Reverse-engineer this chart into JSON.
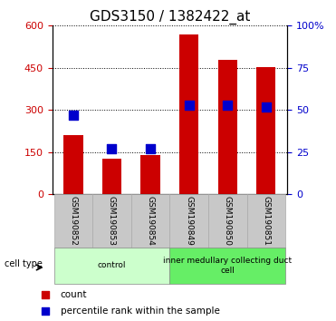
{
  "title": "GDS3150 / 1382422_at",
  "samples": [
    "GSM190852",
    "GSM190853",
    "GSM190854",
    "GSM190849",
    "GSM190850",
    "GSM190851"
  ],
  "counts": [
    210,
    128,
    140,
    570,
    478,
    452
  ],
  "percentiles": [
    47,
    27,
    27,
    53,
    53,
    52
  ],
  "left_ylim": [
    0,
    600
  ],
  "right_ylim": [
    0,
    100
  ],
  "left_yticks": [
    0,
    150,
    300,
    450,
    600
  ],
  "right_yticks": [
    0,
    25,
    50,
    75,
    100
  ],
  "bar_color": "#cc0000",
  "dot_color": "#0000cc",
  "groups": [
    {
      "label": "control",
      "indices": [
        0,
        1,
        2
      ],
      "color": "#ccffcc"
    },
    {
      "label": "inner medullary collecting duct\ncell",
      "indices": [
        3,
        4,
        5
      ],
      "color": "#66ee66"
    }
  ],
  "group_label": "cell type",
  "legend_count_label": "count",
  "legend_pct_label": "percentile rank within the sample",
  "title_fontsize": 11,
  "tick_fontsize": 8,
  "bar_width": 0.5,
  "dot_size": 45,
  "tick_color_left": "#cc0000",
  "tick_color_right": "#0000cc",
  "gray_box_color": "#c8c8c8",
  "gray_box_edge": "#aaaaaa"
}
